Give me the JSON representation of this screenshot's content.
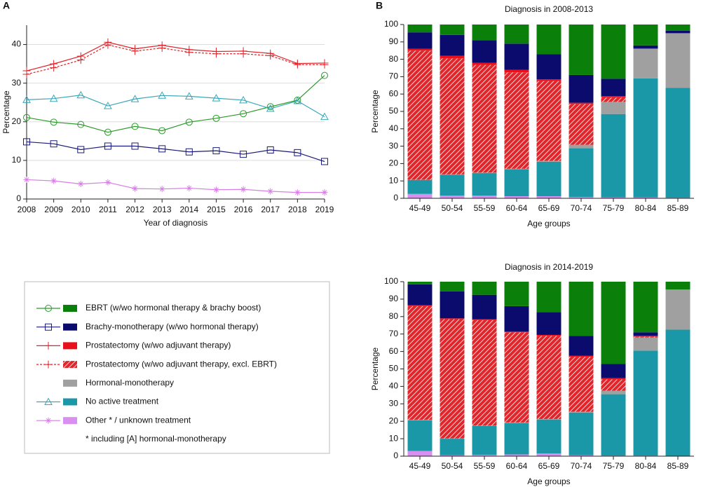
{
  "chart_data": [
    {
      "type": "line",
      "panel_label": "A",
      "x_label": "Year of diagnosis",
      "y_label": "Percentage",
      "x": [
        2008,
        2009,
        2010,
        2011,
        2012,
        2013,
        2014,
        2015,
        2016,
        2017,
        2018,
        2019
      ],
      "xlim": [
        2008,
        2019
      ],
      "xticks": [
        2008,
        2009,
        2010,
        2011,
        2012,
        2013,
        2014,
        2015,
        2016,
        2017,
        2018,
        2019
      ],
      "ylim": [
        0,
        45
      ],
      "yticks": [
        0,
        10,
        20,
        30,
        40
      ],
      "grid": true,
      "series": [
        {
          "color": "#2a9a2a",
          "marker": "circle",
          "dash": false,
          "values": [
            21.1,
            19.9,
            19.3,
            17.3,
            18.8,
            17.7,
            19.9,
            20.9,
            22.1,
            23.9,
            25.6,
            32.0
          ]
        },
        {
          "color": "#1a1a7a",
          "marker": "square",
          "dash": false,
          "values": [
            14.8,
            14.3,
            12.8,
            13.7,
            13.7,
            13.0,
            12.2,
            12.5,
            11.6,
            12.7,
            12.0,
            9.7
          ]
        },
        {
          "color": "#e0252b",
          "marker": "plus",
          "dash": false,
          "values": [
            33.2,
            35.0,
            37.0,
            40.6,
            38.9,
            39.8,
            38.7,
            38.2,
            38.3,
            37.7,
            35.1,
            35.2
          ]
        },
        {
          "color": "#e0252b",
          "marker": "plus",
          "dash": true,
          "values": [
            32.3,
            34.0,
            36.0,
            39.9,
            38.3,
            39.1,
            38.0,
            37.6,
            37.6,
            37.1,
            34.8,
            34.8
          ]
        },
        {
          "color": "#3aa7b8",
          "marker": "triangle",
          "dash": false,
          "values": [
            25.7,
            26.0,
            26.9,
            24.1,
            25.9,
            26.8,
            26.6,
            26.1,
            25.6,
            23.4,
            25.4,
            21.3
          ]
        },
        {
          "color": "#d77fe6",
          "marker": "asterisk",
          "dash": false,
          "values": [
            5.0,
            4.7,
            3.9,
            4.3,
            2.7,
            2.6,
            2.8,
            2.4,
            2.5,
            2.0,
            1.7,
            1.7
          ]
        }
      ]
    },
    {
      "type": "stacked_bar",
      "panel_label": "B",
      "title": "Diagnosis in 2008-2013",
      "x_label": "Age groups",
      "y_label": "Percentage",
      "categories": [
        "45-49",
        "50-54",
        "55-59",
        "60-64",
        "65-69",
        "70-74",
        "75-79",
        "80-84",
        "85-89"
      ],
      "ylim": [
        0,
        100
      ],
      "yticks": [
        0,
        10,
        20,
        30,
        40,
        50,
        60,
        70,
        80,
        90,
        100
      ],
      "series": [
        {
          "name": "Other * / unknown treatment",
          "color": "#d98ff0",
          "pattern": "solid",
          "values": [
            2.5,
            1.5,
            1.5,
            1.2,
            1.2,
            0.8,
            0.5,
            0.5,
            0.3
          ]
        },
        {
          "name": "No active treatment",
          "color": "#1b98a8",
          "pattern": "solid",
          "values": [
            8,
            12,
            13,
            15.5,
            19.8,
            28,
            48,
            68.5,
            63.2
          ]
        },
        {
          "name": "Hormonal-monotherapy",
          "color": "#a0a0a0",
          "pattern": "solid",
          "values": [
            0.2,
            0.3,
            0.3,
            0.3,
            0.5,
            2,
            7,
            17,
            31.5
          ]
        },
        {
          "name": "Prostatectomy (w/wo adjuvant therapy, excl. EBRT)",
          "color": "#e0252b",
          "pattern": "hatch",
          "values": [
            74.3,
            66.7,
            62,
            55.5,
            46,
            23.5,
            2.5,
            0,
            0
          ]
        },
        {
          "name": "Prostatectomy (w/wo adjuvant therapy)",
          "color": "#e8101a",
          "pattern": "solid",
          "values": [
            1,
            1.5,
            1.2,
            1.5,
            1,
            0.7,
            0.8,
            0.3,
            0
          ]
        },
        {
          "name": "Brachy-monotherapy (w/wo hormonal therapy)",
          "color": "#0b0b6e",
          "pattern": "solid",
          "values": [
            9.5,
            12,
            13,
            15,
            14.5,
            16,
            10,
            1.7,
            1.5
          ]
        },
        {
          "name": "EBRT (w/wo hormonal therapy & brachy boost)",
          "color": "#0a800a",
          "pattern": "solid",
          "values": [
            4.5,
            6,
            9,
            11,
            17,
            29,
            31.2,
            12,
            3.5
          ]
        }
      ]
    },
    {
      "type": "stacked_bar",
      "title": "Diagnosis in 2014-2019",
      "x_label": "Age groups",
      "y_label": "Percentage",
      "categories": [
        "45-49",
        "50-54",
        "55-59",
        "60-64",
        "65-69",
        "70-74",
        "75-79",
        "80-84",
        "85-89"
      ],
      "ylim": [
        0,
        100
      ],
      "yticks": [
        0,
        10,
        20,
        30,
        40,
        50,
        60,
        70,
        80,
        90,
        100
      ],
      "series": [
        {
          "color": "#d98ff0",
          "pattern": "solid",
          "values": [
            3,
            0.5,
            0.8,
            1,
            1.5,
            0.5,
            0.3,
            0.3,
            0.2
          ]
        },
        {
          "color": "#1b98a8",
          "pattern": "solid",
          "values": [
            17.5,
            9.5,
            16.5,
            18,
            19.5,
            24.5,
            35.2,
            60.2,
            72.3
          ]
        },
        {
          "color": "#a0a0a0",
          "pattern": "solid",
          "values": [
            0.3,
            0.2,
            0.2,
            0.3,
            0.3,
            0.5,
            2,
            7.5,
            23
          ]
        },
        {
          "color": "#e0252b",
          "pattern": "hatch",
          "values": [
            65.2,
            68.3,
            60.5,
            51.7,
            47.7,
            31.5,
            6.5,
            0.5,
            0
          ]
        },
        {
          "color": "#e8101a",
          "pattern": "solid",
          "values": [
            0.5,
            0.5,
            0.5,
            0.5,
            0.5,
            0.5,
            0.8,
            0.5,
            0
          ]
        },
        {
          "color": "#0b0b6e",
          "pattern": "solid",
          "values": [
            12,
            15.5,
            14,
            14.5,
            13,
            11.5,
            8,
            2,
            0
          ]
        },
        {
          "color": "#0a800a",
          "pattern": "solid",
          "values": [
            1.5,
            5.5,
            7.5,
            14,
            17.5,
            31,
            47.2,
            29,
            4.5
          ]
        }
      ]
    }
  ],
  "legend": {
    "note": "* including [A] hormonal-monotherapy"
  }
}
